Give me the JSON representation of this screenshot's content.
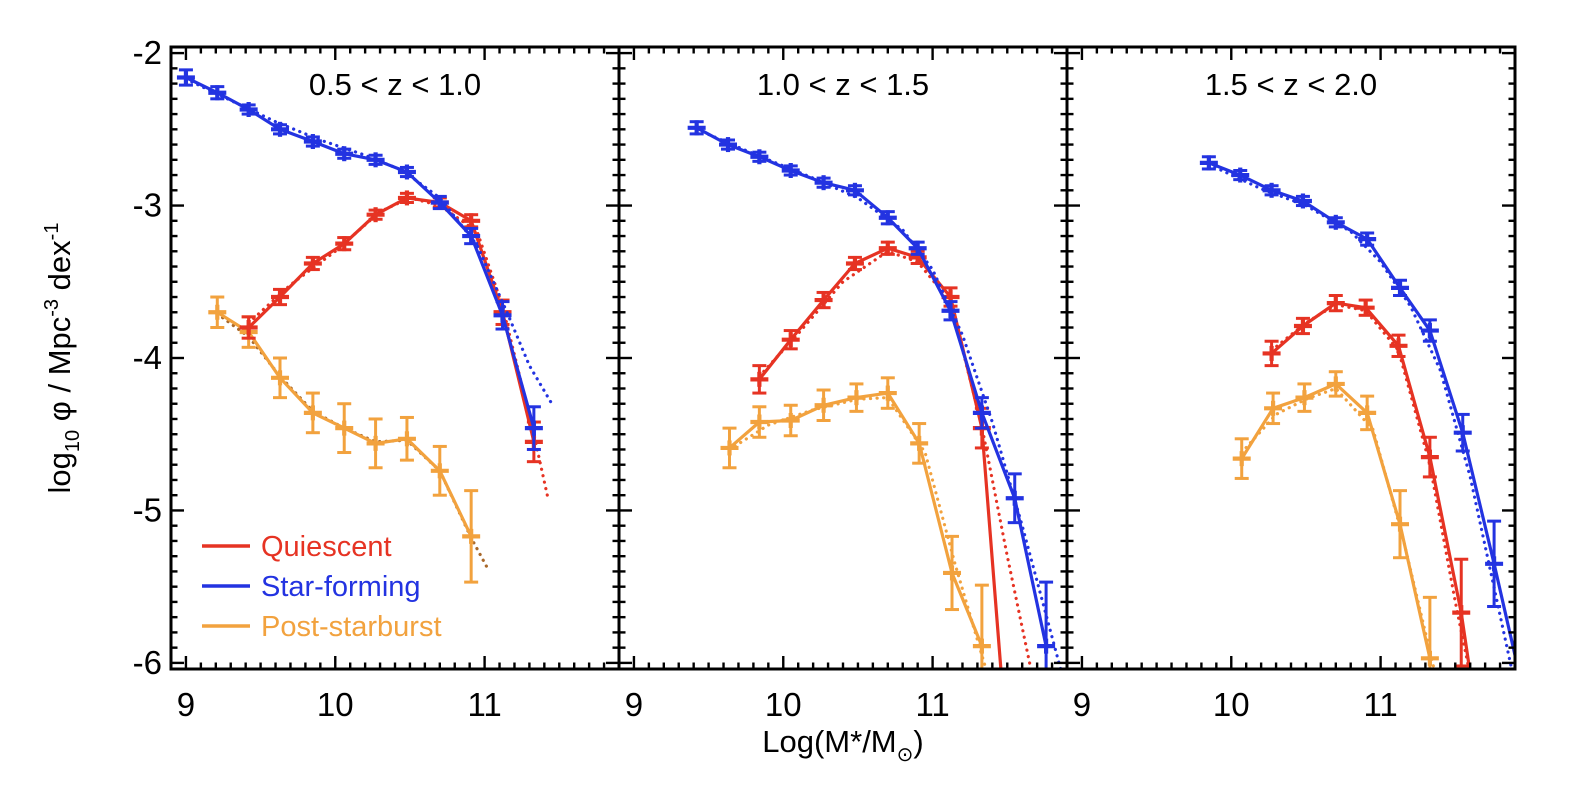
{
  "chart_data": {
    "type": "line",
    "description": "Galaxy stellar mass functions in three redshift bins with Schechter-fit dotted curves and error bars",
    "xlabel_parts": [
      {
        "t": "Log(M*/M"
      },
      {
        "t": "⊙",
        "pos": "sub"
      },
      {
        "t": ")"
      }
    ],
    "ylabel_parts": [
      {
        "t": "log"
      },
      {
        "t": "10",
        "pos": "sub"
      },
      {
        "t": " φ / Mpc"
      },
      {
        "t": "-3",
        "pos": "sup"
      },
      {
        "t": " dex"
      },
      {
        "t": "-1",
        "pos": "sup"
      }
    ],
    "xlim": [
      8.9,
      11.9
    ],
    "ylim": [
      -6.04,
      -1.96
    ],
    "x_ticks": [
      {
        "v": 9,
        "label": "9"
      },
      {
        "v": 10,
        "label": "10"
      },
      {
        "v": 11,
        "label": "11"
      }
    ],
    "y_ticks": [
      {
        "v": -2,
        "label": "-2"
      },
      {
        "v": -3,
        "label": "-3"
      },
      {
        "v": -4,
        "label": "-4"
      },
      {
        "v": -5,
        "label": "-5"
      },
      {
        "v": -6,
        "label": "-6"
      }
    ],
    "x_minor_step": 0.1,
    "y_minor_step": 0.1,
    "grid": false,
    "legend_position": "lower-left of first panel",
    "colors": {
      "quiescent": "#e63323",
      "star_forming": "#2333e1",
      "post_starburst": "#f2a23e",
      "post_starburst_fit_panel1": "#a9692b",
      "axis": "#000000",
      "background": "#ffffff"
    },
    "legend": [
      {
        "series": "quiescent",
        "label": "Quiescent"
      },
      {
        "series": "star_forming",
        "label": "Star-forming"
      },
      {
        "series": "post_starburst",
        "label": "Post-starburst"
      }
    ],
    "panels": [
      {
        "title": "0.5 < z < 1.0",
        "series": [
          {
            "key": "post_starburst",
            "m": [
              9.21,
              9.42,
              9.63,
              9.85,
              10.06,
              10.27,
              10.48,
              10.7,
              10.91
            ],
            "phi": [
              -3.7,
              -3.83,
              -4.13,
              -4.36,
              -4.46,
              -4.56,
              -4.53,
              -4.74,
              -5.17
            ],
            "err": [
              0.1,
              0.1,
              0.13,
              0.13,
              0.16,
              0.16,
              0.14,
              0.16,
              0.3
            ],
            "fit_m": [
              9.21,
              9.42,
              9.63,
              9.85,
              10.06,
              10.27,
              10.48,
              10.7,
              10.91,
              11.02
            ],
            "fit_phi": [
              -3.71,
              -3.86,
              -4.12,
              -4.35,
              -4.46,
              -4.55,
              -4.54,
              -4.74,
              -5.18,
              -5.38
            ],
            "fit_color": "#a9692b"
          },
          {
            "key": "quiescent",
            "m": [
              9.42,
              9.63,
              9.85,
              10.06,
              10.27,
              10.48,
              10.7,
              10.91,
              11.12,
              11.33
            ],
            "phi": [
              -3.8,
              -3.6,
              -3.38,
              -3.25,
              -3.06,
              -2.95,
              -2.98,
              -3.1,
              -3.7,
              -4.55
            ],
            "err": [
              0.07,
              0.05,
              0.04,
              0.04,
              0.03,
              0.03,
              0.03,
              0.04,
              0.08,
              0.13
            ],
            "fit_m": [
              9.42,
              9.7,
              10.0,
              10.3,
              10.5,
              10.7,
              10.95,
              11.12,
              11.33,
              11.42
            ],
            "fit_phi": [
              -3.77,
              -3.52,
              -3.3,
              -3.04,
              -2.95,
              -3.0,
              -3.17,
              -3.66,
              -4.5,
              -4.9
            ]
          },
          {
            "key": "star_forming",
            "m": [
              9.0,
              9.21,
              9.42,
              9.63,
              9.85,
              10.06,
              10.27,
              10.48,
              10.7,
              10.91,
              11.12,
              11.33
            ],
            "phi": [
              -2.16,
              -2.26,
              -2.37,
              -2.5,
              -2.58,
              -2.66,
              -2.7,
              -2.78,
              -2.98,
              -3.2,
              -3.72,
              -4.46
            ],
            "err": [
              0.05,
              0.04,
              0.03,
              0.03,
              0.03,
              0.03,
              0.03,
              0.03,
              0.04,
              0.05,
              0.09,
              0.14
            ],
            "fit_m": [
              9.0,
              9.3,
              9.6,
              9.9,
              10.2,
              10.45,
              10.7,
              10.95,
              11.15,
              11.3,
              11.45
            ],
            "fit_phi": [
              -2.17,
              -2.31,
              -2.45,
              -2.57,
              -2.67,
              -2.77,
              -2.95,
              -3.26,
              -3.7,
              -4.05,
              -4.3
            ]
          }
        ]
      },
      {
        "title": "1.0 < z < 1.5",
        "series": [
          {
            "key": "post_starburst",
            "m": [
              9.64,
              9.84,
              10.05,
              10.27,
              10.49,
              10.7,
              10.91,
              11.13,
              11.33
            ],
            "phi": [
              -4.59,
              -4.42,
              -4.41,
              -4.31,
              -4.26,
              -4.23,
              -4.56,
              -5.41,
              -5.89
            ],
            "err": [
              0.13,
              0.1,
              0.1,
              0.1,
              0.09,
              0.1,
              0.13,
              0.24,
              0.4
            ],
            "fit_m": [
              9.64,
              9.9,
              10.2,
              10.5,
              10.7,
              10.95,
              11.15,
              11.36
            ],
            "fit_phi": [
              -4.6,
              -4.44,
              -4.34,
              -4.27,
              -4.26,
              -4.62,
              -5.35,
              -6.05
            ]
          },
          {
            "key": "quiescent",
            "m": [
              9.84,
              10.05,
              10.27,
              10.48,
              10.7,
              10.9,
              11.12,
              11.33
            ],
            "phi": [
              -4.14,
              -3.88,
              -3.62,
              -3.38,
              -3.28,
              -3.34,
              -3.6,
              -4.46
            ],
            "err": [
              0.09,
              0.06,
              0.05,
              0.04,
              0.04,
              0.04,
              0.06,
              0.13
            ],
            "ext": [
              11.47,
              -6.2
            ],
            "fit_m": [
              9.84,
              10.1,
              10.4,
              10.7,
              10.9,
              11.12,
              11.33,
              11.5,
              11.66
            ],
            "fit_phi": [
              -4.12,
              -3.84,
              -3.5,
              -3.3,
              -3.37,
              -3.63,
              -4.45,
              -5.3,
              -6.05
            ]
          },
          {
            "key": "star_forming",
            "m": [
              9.42,
              9.63,
              9.84,
              10.05,
              10.27,
              10.48,
              10.7,
              10.9,
              11.12,
              11.33,
              11.55,
              11.76
            ],
            "phi": [
              -2.49,
              -2.6,
              -2.68,
              -2.77,
              -2.85,
              -2.9,
              -3.08,
              -3.28,
              -3.69,
              -4.36,
              -4.92,
              -5.89
            ],
            "err": [
              0.04,
              0.03,
              0.03,
              0.03,
              0.03,
              0.03,
              0.04,
              0.04,
              0.06,
              0.1,
              0.16,
              0.42
            ],
            "fit_m": [
              9.42,
              9.8,
              10.2,
              10.5,
              10.8,
              11.0,
              11.2,
              11.4,
              11.6,
              11.86
            ],
            "fit_phi": [
              -2.5,
              -2.66,
              -2.82,
              -2.95,
              -3.16,
              -3.42,
              -3.85,
              -4.42,
              -5.1,
              -6.05
            ]
          }
        ]
      },
      {
        "title": "1.5 < z < 2.0",
        "series": [
          {
            "key": "post_starburst",
            "m": [
              10.07,
              10.28,
              10.49,
              10.7,
              10.91,
              11.13,
              11.33
            ],
            "phi": [
              -4.66,
              -4.33,
              -4.26,
              -4.17,
              -4.36,
              -5.09,
              -5.97
            ],
            "err": [
              0.13,
              0.1,
              0.09,
              0.08,
              0.11,
              0.22,
              0.4
            ],
            "fit_m": [
              10.07,
              10.3,
              10.5,
              10.7,
              10.95,
              11.15,
              11.36
            ],
            "fit_phi": [
              -4.62,
              -4.37,
              -4.27,
              -4.2,
              -4.47,
              -5.18,
              -6.05
            ]
          },
          {
            "key": "quiescent",
            "m": [
              10.27,
              10.48,
              10.7,
              10.9,
              11.12,
              11.33,
              11.54
            ],
            "phi": [
              -3.97,
              -3.79,
              -3.64,
              -3.67,
              -3.92,
              -4.65,
              -5.67
            ],
            "err": [
              0.08,
              0.05,
              0.05,
              0.05,
              0.07,
              0.13,
              0.35
            ],
            "ext": [
              11.62,
              -6.2
            ],
            "fit_m": [
              10.27,
              10.5,
              10.7,
              10.9,
              11.12,
              11.33,
              11.5,
              11.6
            ],
            "fit_phi": [
              -3.95,
              -3.77,
              -3.65,
              -3.69,
              -3.95,
              -4.7,
              -5.6,
              -6.08
            ]
          },
          {
            "key": "star_forming",
            "m": [
              9.85,
              10.06,
              10.27,
              10.48,
              10.7,
              10.91,
              11.13,
              11.33,
              11.55,
              11.76
            ],
            "phi": [
              -2.72,
              -2.8,
              -2.9,
              -2.97,
              -3.11,
              -3.22,
              -3.54,
              -3.82,
              -4.49,
              -5.35
            ],
            "err": [
              0.04,
              0.03,
              0.03,
              0.03,
              0.03,
              0.04,
              0.05,
              0.07,
              0.12,
              0.28
            ],
            "ext": [
              11.9,
              -5.95
            ],
            "fit_m": [
              9.85,
              10.2,
              10.5,
              10.8,
              11.0,
              11.2,
              11.4,
              11.6,
              11.88
            ],
            "fit_phi": [
              -2.73,
              -2.89,
              -3.0,
              -3.17,
              -3.37,
              -3.66,
              -4.08,
              -4.78,
              -6.05
            ]
          }
        ]
      }
    ]
  }
}
